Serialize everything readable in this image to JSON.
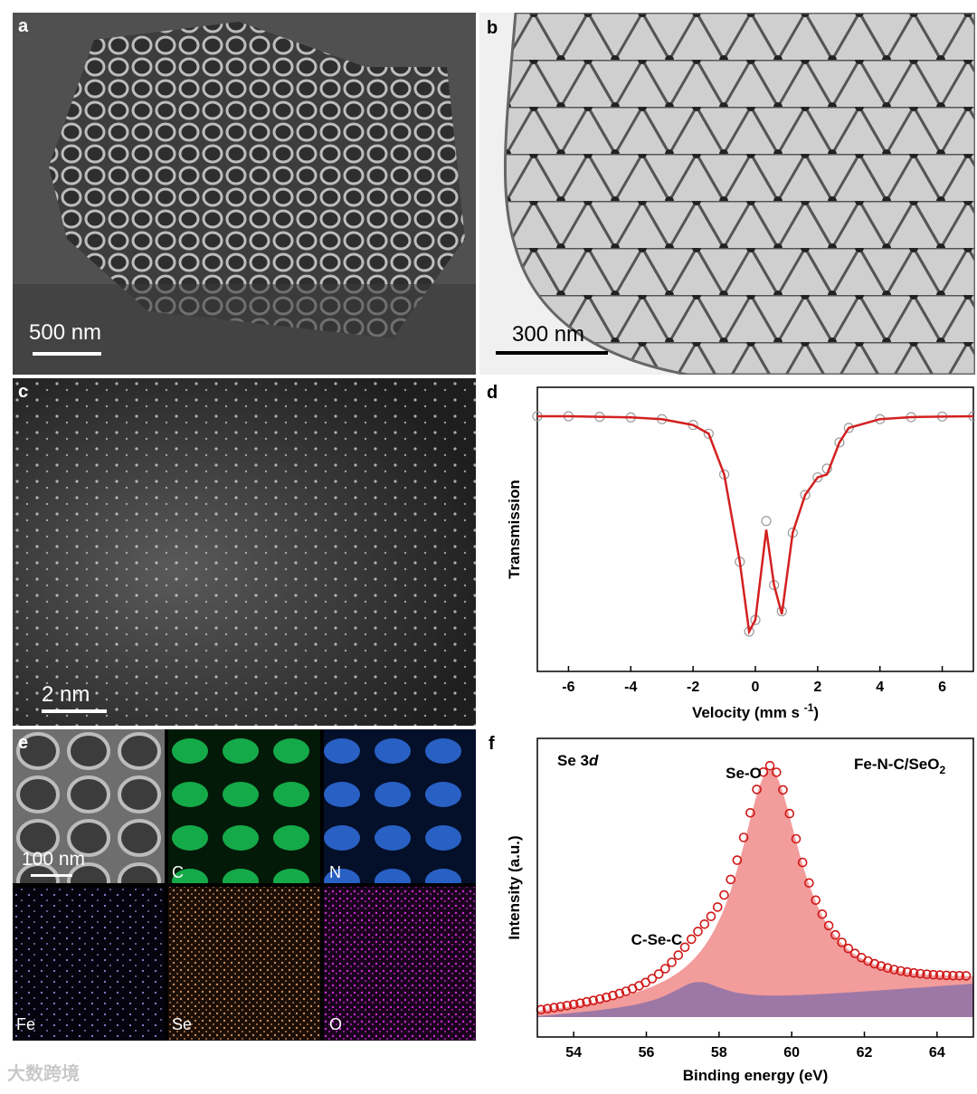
{
  "panels": {
    "a": {
      "label": "a",
      "scale_bar": "500 nm"
    },
    "b": {
      "label": "b",
      "scale_bar": "300 nm"
    },
    "c": {
      "label": "c",
      "scale_bar": "2 nm"
    },
    "e": {
      "label": "e",
      "scale_bar": "100 nm",
      "maps": [
        "C",
        "N",
        "Fe",
        "Se",
        "O"
      ],
      "map_colors": {
        "C": "#19c95a",
        "N": "#2f6fe0",
        "Fe": "#8f86d8",
        "Se": "#c98a5c",
        "O": "#d12ad9"
      }
    }
  },
  "watermark": "大数跨境",
  "chart_data": [
    {
      "panel": "d",
      "type": "line",
      "title": "",
      "xlabel": "Velocity (mm s",
      "xlabel_sup": "-1",
      "xlabel_end": ")",
      "ylabel": "Transmission",
      "xlim": [
        -7,
        7
      ],
      "xticks": [
        -6,
        -4,
        -2,
        0,
        2,
        4,
        6
      ],
      "series": [
        {
          "role": "measured",
          "style": "open-circles",
          "color": "#9a9a9a",
          "x": [
            -7,
            -6,
            -5,
            -4,
            -3,
            -2,
            -1.5,
            -1,
            -0.5,
            -0.2,
            0,
            0.35,
            0.6,
            0.85,
            1.2,
            1.6,
            2.0,
            2.3,
            2.7,
            3,
            4,
            5,
            6,
            7
          ],
          "y": [
            1,
            1,
            0.998,
            0.996,
            0.99,
            0.97,
            0.94,
            0.8,
            0.5,
            0.26,
            0.3,
            0.64,
            0.42,
            0.33,
            0.6,
            0.73,
            0.79,
            0.82,
            0.91,
            0.96,
            0.99,
            0.997,
            0.999,
            1
          ]
        },
        {
          "role": "fit",
          "style": "line",
          "color": "#d42020",
          "x": [
            -7,
            -6,
            -5,
            -4,
            -3,
            -2,
            -1.5,
            -1,
            -0.5,
            -0.2,
            0,
            0.35,
            0.6,
            0.85,
            1.2,
            1.6,
            2.0,
            2.3,
            2.7,
            3,
            4,
            5,
            6,
            7
          ],
          "y": [
            1,
            1,
            0.998,
            0.996,
            0.99,
            0.97,
            0.94,
            0.8,
            0.5,
            0.26,
            0.3,
            0.61,
            0.42,
            0.32,
            0.6,
            0.73,
            0.79,
            0.8,
            0.91,
            0.96,
            0.99,
            0.997,
            0.999,
            1
          ]
        }
      ]
    },
    {
      "panel": "f",
      "type": "area",
      "title": "",
      "xlabel": "Binding energy (eV)",
      "ylabel": "Intensity (a.u.)",
      "xlim": [
        53,
        65
      ],
      "xticks": [
        54,
        56,
        58,
        60,
        62,
        64
      ],
      "annotations": {
        "left": "Se 3",
        "left_italic": "d",
        "right": "Fe-N-C/SeO",
        "right_sub": "2"
      },
      "peaks": [
        {
          "name": "Se-O",
          "center": 59.4,
          "height": 1.0,
          "color": "#f08b8b"
        },
        {
          "name": "C-Se-C",
          "center": 57.4,
          "height": 0.1,
          "color": "#8e72a8"
        }
      ],
      "envelope_color": "#d01818"
    }
  ]
}
